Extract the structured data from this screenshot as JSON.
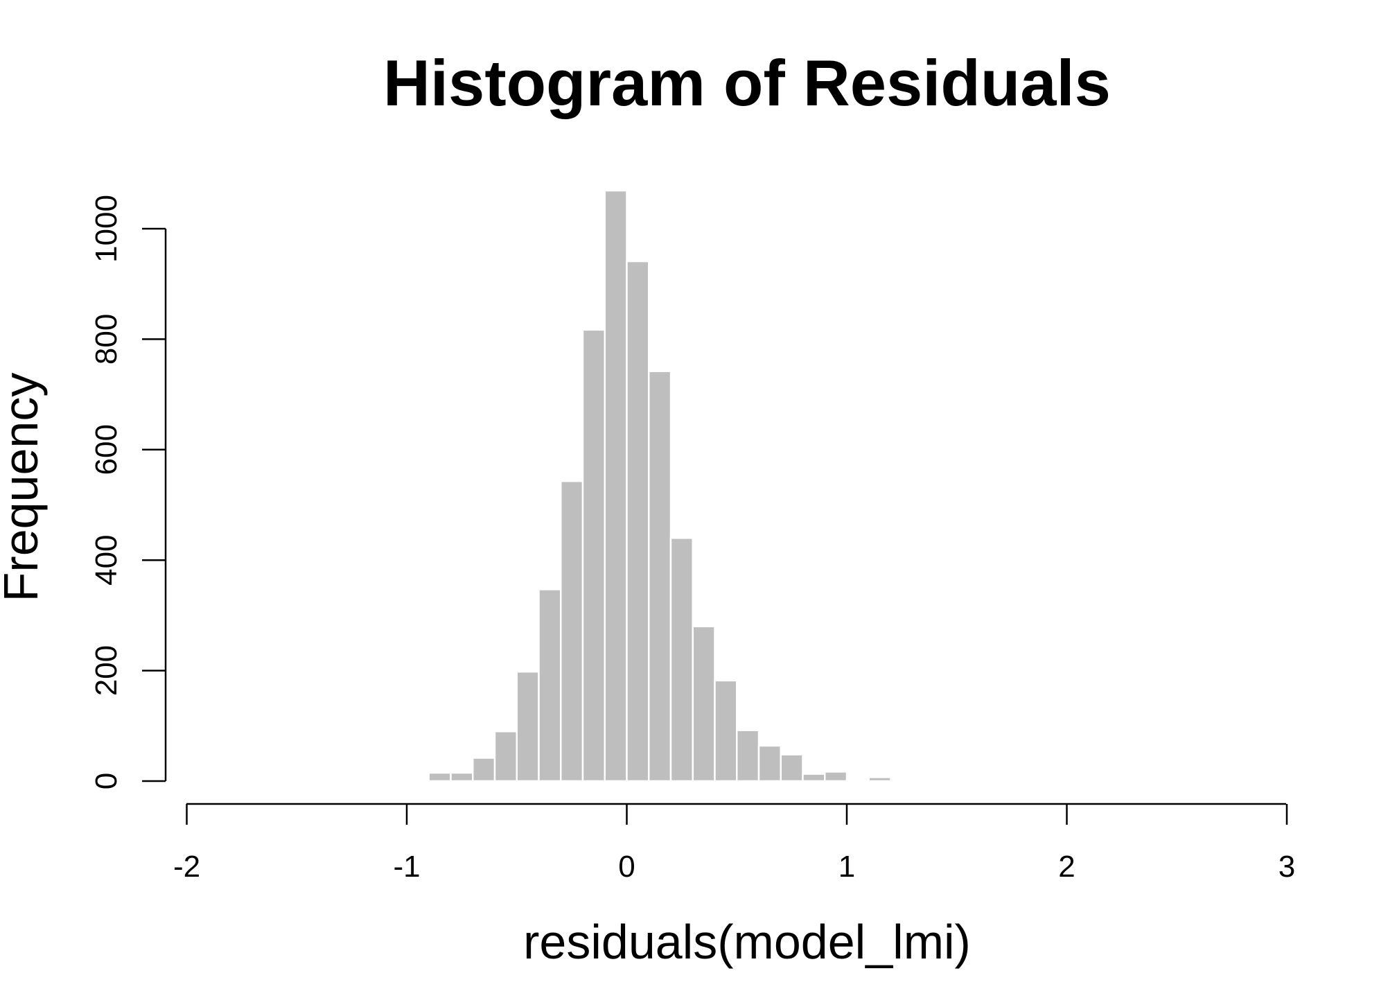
{
  "chart_data": {
    "type": "bar",
    "title": "Histogram of Residuals",
    "xlabel": "residuals(model_lmi)",
    "ylabel": "Frequency",
    "xlim": [
      -2,
      3
    ],
    "ylim": [
      0,
      1070
    ],
    "x_ticks": [
      "-2",
      "-1",
      "0",
      "1",
      "2",
      "3"
    ],
    "y_ticks": [
      "0",
      "200",
      "400",
      "600",
      "800",
      "1000"
    ],
    "bin_width": 0.1,
    "bins": [
      {
        "x0": -1.0,
        "x1": -0.9,
        "count": 2
      },
      {
        "x0": -0.9,
        "x1": -0.8,
        "count": 15
      },
      {
        "x0": -0.8,
        "x1": -0.7,
        "count": 15
      },
      {
        "x0": -0.7,
        "x1": -0.6,
        "count": 42
      },
      {
        "x0": -0.6,
        "x1": -0.5,
        "count": 90
      },
      {
        "x0": -0.5,
        "x1": -0.4,
        "count": 198
      },
      {
        "x0": -0.4,
        "x1": -0.3,
        "count": 347
      },
      {
        "x0": -0.3,
        "x1": -0.2,
        "count": 543
      },
      {
        "x0": -0.2,
        "x1": -0.1,
        "count": 817
      },
      {
        "x0": -0.1,
        "x1": 0.0,
        "count": 1069
      },
      {
        "x0": 0.0,
        "x1": 0.1,
        "count": 941
      },
      {
        "x0": 0.1,
        "x1": 0.2,
        "count": 742
      },
      {
        "x0": 0.2,
        "x1": 0.3,
        "count": 440
      },
      {
        "x0": 0.3,
        "x1": 0.4,
        "count": 280
      },
      {
        "x0": 0.4,
        "x1": 0.5,
        "count": 182
      },
      {
        "x0": 0.5,
        "x1": 0.6,
        "count": 92
      },
      {
        "x0": 0.6,
        "x1": 0.7,
        "count": 64
      },
      {
        "x0": 0.7,
        "x1": 0.8,
        "count": 48
      },
      {
        "x0": 0.8,
        "x1": 0.9,
        "count": 13
      },
      {
        "x0": 0.9,
        "x1": 1.0,
        "count": 17
      },
      {
        "x0": 1.0,
        "x1": 1.1,
        "count": 2
      },
      {
        "x0": 1.1,
        "x1": 1.2,
        "count": 7
      }
    ],
    "bar_color": "#bebebe",
    "bar_border_color": "#ffffff",
    "grid": false,
    "legend": "none"
  }
}
